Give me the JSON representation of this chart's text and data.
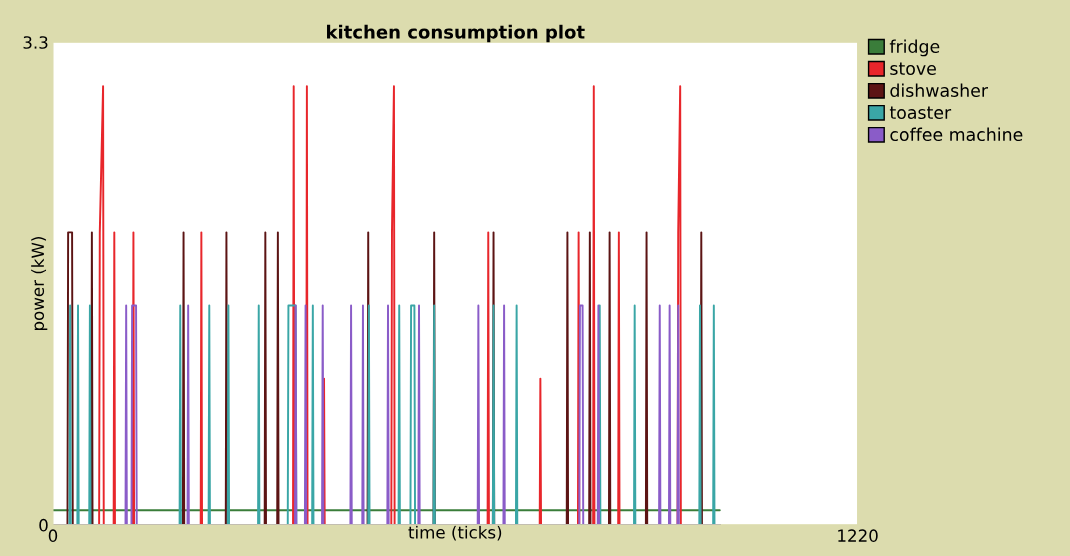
{
  "chart_data": {
    "type": "line",
    "title": "kitchen consumption plot",
    "xlabel": "time (ticks)",
    "ylabel": "power (kW)",
    "xlim": [
      0,
      1220
    ],
    "xticks": [
      0,
      1220
    ],
    "ylim": [
      0,
      3.3
    ],
    "yticks": [
      0,
      3.3
    ],
    "legend": "right",
    "series": [
      {
        "name": "fridge",
        "color": "#3a7d3a",
        "x": [
          0,
          1011
        ],
        "values": [
          0.1,
          0.1
        ]
      },
      {
        "name": "stove",
        "color": "#e8262b",
        "x": [
          0,
          70,
          71,
          76,
          77,
          92,
          93,
          94,
          121,
          122,
          123,
          224,
          225,
          226,
          364,
          365,
          366,
          384,
          385,
          386,
          410,
          411,
          412,
          513,
          514,
          517,
          518,
          659,
          660,
          661,
          738,
          739,
          740,
          796,
          797,
          798,
          819,
          820,
          821,
          857,
          858,
          859,
          947,
          948,
          951,
          952,
          1011
        ],
        "values": [
          0,
          0,
          2,
          3,
          0,
          0,
          2,
          0,
          0,
          2,
          0,
          0,
          2,
          0,
          0,
          3,
          0,
          0,
          3,
          0,
          0,
          1,
          0,
          0,
          2,
          3,
          0,
          0,
          2,
          0,
          0,
          1,
          0,
          0,
          2,
          0,
          0,
          3,
          0,
          0,
          2,
          0,
          0,
          2,
          3,
          0,
          0
        ]
      },
      {
        "name": "dishwasher",
        "color": "#5c1414",
        "x": [
          0,
          22,
          23,
          29,
          30,
          58,
          59,
          60,
          197,
          198,
          199,
          262,
          263,
          264,
          321,
          322,
          323,
          340,
          341,
          342,
          477,
          478,
          479,
          577,
          578,
          579,
          667,
          668,
          669,
          779,
          780,
          781,
          813,
          814,
          815,
          843,
          844,
          845,
          899,
          900,
          901,
          982,
          983,
          984,
          1011
        ],
        "values": [
          0,
          0,
          2,
          2,
          0,
          0,
          2,
          0,
          0,
          2,
          0,
          0,
          2,
          0,
          0,
          2,
          0,
          0,
          2,
          0,
          0,
          2,
          0,
          0,
          2,
          0,
          0,
          2,
          0,
          0,
          2,
          0,
          0,
          2,
          0,
          0,
          2,
          0,
          0,
          2,
          0,
          0,
          2,
          0,
          0
        ]
      },
      {
        "name": "toaster",
        "color": "#3aa6a6",
        "x": [
          0,
          25,
          26,
          27,
          37,
          38,
          39,
          55,
          56,
          57,
          192,
          193,
          194,
          236,
          237,
          238,
          265,
          266,
          267,
          311,
          312,
          313,
          356,
          357,
          368,
          369,
          393,
          394,
          395,
          478,
          479,
          480,
          524,
          525,
          526,
          542,
          543,
          548,
          549,
          577,
          578,
          579,
          667,
          668,
          669,
          702,
          703,
          704,
          828,
          829,
          830,
          881,
          882,
          883,
          980,
          981,
          982,
          1001,
          1002,
          1003,
          1011
        ],
        "values": [
          0,
          0,
          1.5,
          0,
          0,
          1.5,
          0,
          0,
          1.5,
          0,
          0,
          1.5,
          0,
          0,
          1.5,
          0,
          0,
          1.5,
          0,
          0,
          1.5,
          0,
          0,
          1.5,
          1.5,
          0,
          0,
          1.5,
          0,
          0,
          1.5,
          0,
          0,
          1.5,
          0,
          0,
          1.5,
          1.5,
          0,
          0,
          1.5,
          0,
          0,
          1.5,
          0,
          0,
          1.5,
          0,
          0,
          1.5,
          0,
          0,
          1.5,
          0,
          0,
          1.5,
          0,
          0,
          1.5,
          0,
          0
        ]
      },
      {
        "name": "coffee machine",
        "color": "#8a5cc8",
        "x": [
          0,
          110,
          111,
          112,
          119,
          120,
          126,
          127,
          204,
          205,
          206,
          367,
          368,
          369,
          382,
          383,
          384,
          408,
          409,
          410,
          451,
          452,
          453,
          469,
          470,
          471,
          507,
          508,
          509,
          554,
          555,
          556,
          644,
          645,
          646,
          683,
          684,
          685,
          798,
          799,
          803,
          804,
          826,
          827,
          828,
          919,
          920,
          921,
          934,
          935,
          936,
          947,
          948,
          949,
          1011
        ],
        "values": [
          0,
          0,
          1.5,
          0,
          0,
          1.5,
          1.5,
          0,
          0,
          1.5,
          0,
          0,
          1.5,
          0,
          0,
          1.5,
          0,
          0,
          1.5,
          0,
          0,
          1.5,
          0,
          0,
          1.5,
          0,
          0,
          1.5,
          0,
          0,
          1.5,
          0,
          0,
          1.5,
          0,
          0,
          1.5,
          0,
          0,
          1.5,
          1.5,
          0,
          0,
          1.5,
          0,
          0,
          1.5,
          0,
          0,
          1.5,
          0,
          0,
          1.5,
          0,
          0
        ]
      }
    ]
  }
}
